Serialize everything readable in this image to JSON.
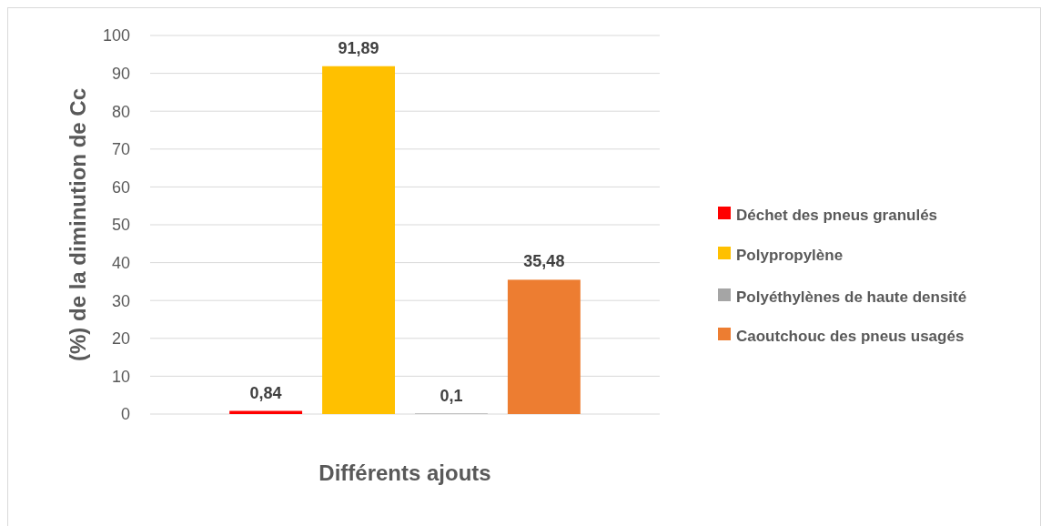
{
  "chart_data": {
    "type": "bar",
    "categories": [
      null
    ],
    "series": [
      {
        "name": "Déchet des pneus granulés",
        "color": "#ff0000",
        "values": [
          0.84
        ],
        "value_labels": [
          "0,84"
        ]
      },
      {
        "name": "Polypropylène",
        "color": "#ffc000",
        "values": [
          91.89
        ],
        "value_labels": [
          "91,89"
        ]
      },
      {
        "name": "Polyéthylènes de haute densité",
        "color": "#a5a5a5",
        "values": [
          0.1
        ],
        "value_labels": [
          "0,1"
        ]
      },
      {
        "name": "Caoutchouc des pneus usagés",
        "color": "#ed7d31",
        "values": [
          35.48
        ],
        "value_labels": [
          "35,48"
        ]
      }
    ],
    "xlabel": "Différents ajouts",
    "ylabel": "(%) de la diminution de Cc",
    "ylim": [
      0,
      100
    ],
    "yticks": [
      0,
      10,
      20,
      30,
      40,
      50,
      60,
      70,
      80,
      90,
      100
    ],
    "grid": "y",
    "legend": "right"
  }
}
